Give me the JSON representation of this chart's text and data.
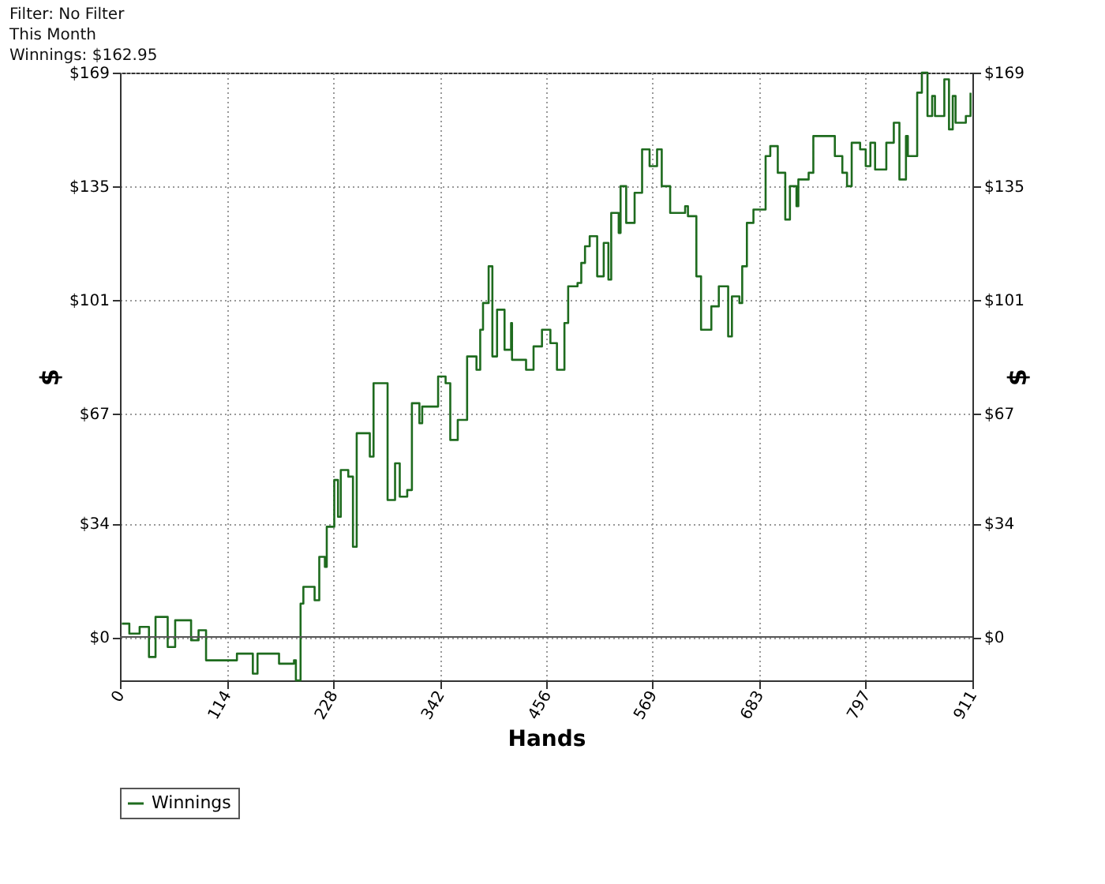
{
  "chart_data": {
    "type": "step",
    "xlabel": "Hands",
    "ylabel": "$",
    "y2label": "$",
    "annotations": [
      "Filter: No Filter",
      "This Month",
      "Winnings: $162.95"
    ],
    "xlim": [
      0,
      911
    ],
    "xticks": [
      0,
      114,
      228,
      342,
      456,
      569,
      683,
      797,
      911
    ],
    "ylim": [
      -13,
      169
    ],
    "yticks": [
      {
        "value": 0,
        "label": "$0"
      },
      {
        "value": 34,
        "label": "$34"
      },
      {
        "value": 67,
        "label": "$67"
      },
      {
        "value": 101,
        "label": "$101"
      },
      {
        "value": 135,
        "label": "$135"
      },
      {
        "value": 169,
        "label": "$169"
      }
    ],
    "y2lim": [
      -13,
      169
    ],
    "y2ticks": [
      {
        "value": 0,
        "label": "$0"
      },
      {
        "value": 34,
        "label": "$34"
      },
      {
        "value": 67,
        "label": "$67"
      },
      {
        "value": 101,
        "label": "$101"
      },
      {
        "value": 135,
        "label": "$135"
      },
      {
        "value": 169,
        "label": "$169"
      }
    ],
    "grid": true,
    "legend": "bottom left",
    "marker": "none",
    "line_style": "solid",
    "ref_lines": [
      {
        "axis": "y",
        "value": 0,
        "color": "#555555",
        "line_style": "solid"
      }
    ],
    "series": [
      {
        "name": "Winnings",
        "color": "#1e6b1e",
        "x": [
          2,
          10,
          21,
          31,
          38,
          51,
          59,
          71,
          76,
          84,
          92,
          114,
          125,
          142,
          147,
          170,
          186,
          188,
          193,
          196,
          208,
          213,
          219,
          221,
          229,
          233,
          236,
          244,
          249,
          253,
          262,
          267,
          271,
          279,
          286,
          294,
          299,
          307,
          312,
          320,
          323,
          335,
          340,
          348,
          353,
          361,
          368,
          371,
          381,
          385,
          388,
          394,
          398,
          403,
          411,
          418,
          419,
          434,
          442,
          451,
          460,
          467,
          475,
          479,
          489,
          493,
          497,
          502,
          510,
          517,
          522,
          525,
          533,
          535,
          541,
          546,
          550,
          558,
          566,
          574,
          579,
          588,
          604,
          607,
          616,
          621,
          632,
          640,
          642,
          650,
          654,
          662,
          665,
          670,
          677,
          682,
          690,
          695,
          703,
          711,
          716,
          723,
          725,
          736,
          741,
          758,
          764,
          772,
          777,
          782,
          791,
          797,
          802,
          807,
          819,
          827,
          833,
          840,
          842,
          852,
          857,
          863,
          868,
          871,
          881,
          886,
          890,
          893,
          904,
          909
        ],
        "values": [
          4,
          1,
          3,
          -6,
          6,
          -3,
          5,
          5,
          -1,
          2,
          -7,
          -7,
          -5,
          -11,
          -5,
          -8,
          -7,
          -13,
          10,
          15,
          11,
          24,
          21,
          33,
          47,
          36,
          50,
          48,
          27,
          61,
          61,
          54,
          76,
          76,
          41,
          52,
          42,
          44,
          70,
          64,
          69,
          69,
          78,
          76,
          59,
          65,
          65,
          84,
          80,
          92,
          100,
          111,
          84,
          98,
          86,
          94,
          83,
          80,
          87,
          92,
          88,
          80,
          94,
          105,
          106,
          112,
          117,
          120,
          108,
          118,
          107,
          127,
          121,
          135,
          124,
          124,
          133,
          146,
          141,
          146,
          135,
          127,
          129,
          126,
          108,
          92,
          99,
          105,
          105,
          90,
          102,
          100,
          111,
          124,
          128,
          128,
          144,
          147,
          139,
          125,
          135,
          129,
          137,
          139,
          150,
          150,
          144,
          139,
          135,
          148,
          146,
          141,
          148,
          140,
          148,
          154,
          137,
          150,
          144,
          163,
          169,
          156,
          162,
          156,
          167,
          152,
          162,
          154,
          156,
          163
        ]
      }
    ]
  }
}
